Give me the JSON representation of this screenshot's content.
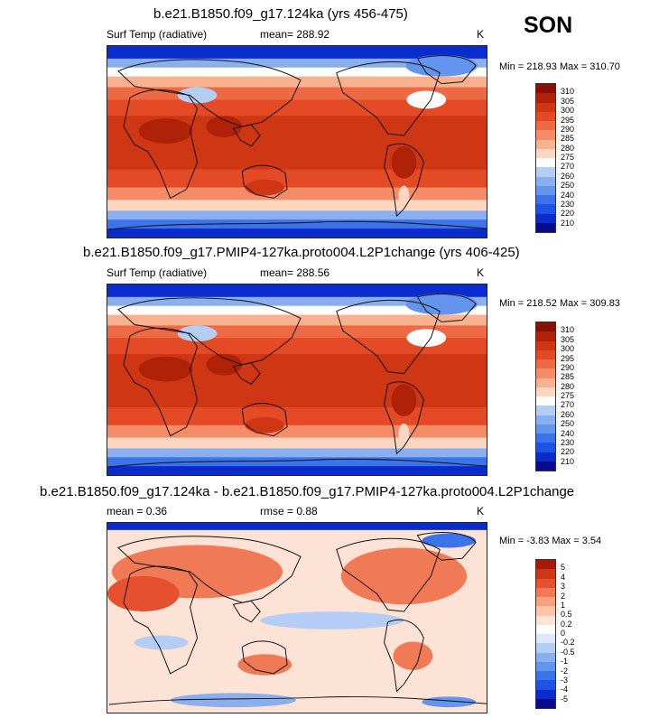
{
  "season": "SON",
  "palettes": {
    "abs": [
      "#0a0a8c",
      "#0b2ccc",
      "#1e54e6",
      "#3b74ea",
      "#6394ee",
      "#8aafef",
      "#b4cdf4",
      "#fdfdfd",
      "#fcd6c1",
      "#f9b28f",
      "#f48c67",
      "#ee6a44",
      "#e44a26",
      "#cf3614",
      "#b02208",
      "#8a1005"
    ],
    "diff": [
      "#0a0a8c",
      "#0b2ccc",
      "#1e54e6",
      "#3b74ea",
      "#6394ee",
      "#8aafef",
      "#b4cdf4",
      "#dde8fa",
      "#fdfdfd",
      "#fde3d5",
      "#fbc6a8",
      "#f7a17d",
      "#f07a56",
      "#e5512f",
      "#cf3614",
      "#a81a06"
    ]
  },
  "panels": [
    {
      "title": "b.e21.B1850.f09_g17.124ka (yrs 456-475)",
      "variable": "Surf Temp (radiative)",
      "stat1": "mean= 288.92",
      "stat2": "",
      "units": "K",
      "minmax": "Min = 218.93 Max = 310.70",
      "kind": "abs",
      "colorbar_ticks": [
        "310",
        "305",
        "300",
        "295",
        "290",
        "285",
        "280",
        "275",
        "270",
        "260",
        "250",
        "240",
        "230",
        "220",
        "210"
      ]
    },
    {
      "title": "b.e21.B1850.f09_g17.PMIP4-127ka.proto004.L2P1change (yrs 406-425)",
      "variable": "Surf Temp (radiative)",
      "stat1": "mean= 288.56",
      "stat2": "",
      "units": "K",
      "minmax": "Min = 218.52 Max = 309.83",
      "kind": "abs",
      "colorbar_ticks": [
        "310",
        "305",
        "300",
        "295",
        "290",
        "285",
        "280",
        "275",
        "270",
        "260",
        "250",
        "240",
        "230",
        "220",
        "210"
      ]
    },
    {
      "title": "b.e21.B1850.f09_g17.124ka - b.e21.B1850.f09_g17.PMIP4-127ka.proto004.L2P1change",
      "variable": "mean =   0.36",
      "stat1": "rmse =   0.88",
      "stat2": "",
      "units": "K",
      "minmax": "Min =  -3.83 Max =   3.54",
      "kind": "diff",
      "colorbar_ticks": [
        "5",
        "4",
        "3",
        "2",
        "1",
        "0.5",
        "0.2",
        "0",
        "-0.2",
        "-0.5",
        "-1",
        "-2",
        "-3",
        "-4",
        "-5"
      ]
    }
  ]
}
